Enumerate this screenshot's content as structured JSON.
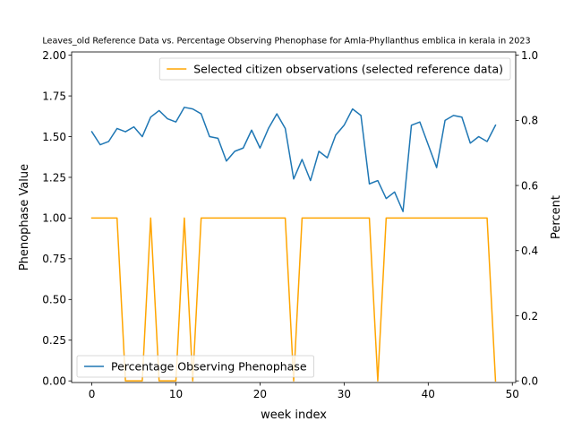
{
  "chart_data": {
    "type": "line",
    "title": "Leaves_old Reference Data vs. Percentage Observing Phenophase for Amla-Phyllanthus emblica in kerala in 2023",
    "xlabel": "week index",
    "ylabel_left": "Phenophase Value",
    "ylabel_right": "Percent",
    "xlim": [
      -2.4,
      50.4
    ],
    "ylim_left": [
      -0.01,
      2.02
    ],
    "ylim_right": [
      -0.005,
      1.01
    ],
    "xticks": [
      0,
      10,
      20,
      30,
      40,
      50
    ],
    "yticks_left": [
      0.0,
      0.25,
      0.5,
      0.75,
      1.0,
      1.25,
      1.5,
      1.75,
      2.0
    ],
    "yticks_right": [
      0.0,
      0.2,
      0.4,
      0.6,
      0.8,
      1.0
    ],
    "grid": false,
    "series": [
      {
        "name": "Percentage Observing Phenophase",
        "axis": "left",
        "color": "#1f77b4",
        "legend_position": "lower-left",
        "x": [
          0,
          1,
          2,
          3,
          4,
          5,
          6,
          7,
          8,
          9,
          10,
          11,
          12,
          13,
          14,
          15,
          16,
          17,
          18,
          19,
          20,
          21,
          22,
          23,
          24,
          25,
          26,
          27,
          28,
          29,
          30,
          31,
          32,
          33,
          34,
          35,
          36,
          37,
          38,
          39,
          40,
          41,
          42,
          43,
          44,
          45,
          46,
          47,
          48
        ],
        "values": [
          1.53,
          1.45,
          1.47,
          1.55,
          1.53,
          1.56,
          1.5,
          1.62,
          1.66,
          1.61,
          1.59,
          1.68,
          1.67,
          1.64,
          1.5,
          1.49,
          1.35,
          1.41,
          1.43,
          1.54,
          1.43,
          1.55,
          1.64,
          1.55,
          1.24,
          1.36,
          1.23,
          1.41,
          1.37,
          1.51,
          1.57,
          1.67,
          1.63,
          1.21,
          1.23,
          1.12,
          1.16,
          1.04,
          1.57,
          1.59,
          1.45,
          1.31,
          1.6,
          1.63,
          1.62,
          1.46,
          1.5,
          1.47,
          1.57
        ]
      },
      {
        "name": "Selected citizen observations (selected reference data)",
        "axis": "right",
        "color": "#ffa500",
        "legend_position": "upper-right",
        "x": [
          0,
          1,
          2,
          3,
          4,
          5,
          6,
          7,
          8,
          9,
          10,
          11,
          12,
          13,
          14,
          15,
          16,
          17,
          18,
          19,
          20,
          21,
          22,
          23,
          24,
          25,
          26,
          27,
          28,
          29,
          30,
          31,
          32,
          33,
          34,
          35,
          36,
          37,
          38,
          39,
          40,
          41,
          42,
          43,
          44,
          45,
          46,
          47,
          48
        ],
        "values": [
          0.5,
          0.5,
          0.5,
          0.5,
          0,
          0,
          0,
          0.5,
          0,
          0,
          0,
          0.5,
          0,
          0.5,
          0.5,
          0.5,
          0.5,
          0.5,
          0.5,
          0.5,
          0.5,
          0.5,
          0.5,
          0.5,
          0,
          0.5,
          0.5,
          0.5,
          0.5,
          0.5,
          0.5,
          0.5,
          0.5,
          0.5,
          0,
          0.5,
          0.5,
          0.5,
          0.5,
          0.5,
          0.5,
          0.5,
          0.5,
          0.5,
          0.5,
          0.5,
          0.5,
          0.5,
          0
        ]
      }
    ]
  }
}
